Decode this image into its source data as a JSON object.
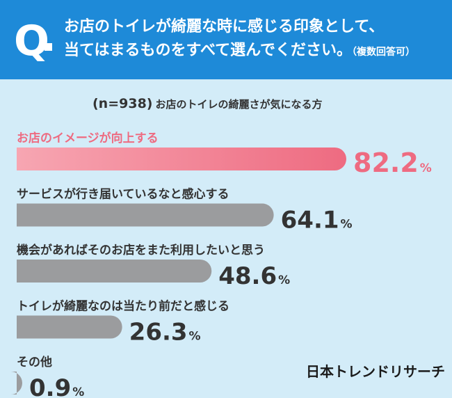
{
  "header": {
    "q_mark": "Q",
    "question_line1": "お店のトイレが綺麗な時に感じる印象として、",
    "question_line2": "当てはまるものをすべて選んでください。",
    "question_note": "（複数回答可）"
  },
  "sample": {
    "n_label": "(n=938)",
    "description": "お店のトイレの綺麗さが気になる方"
  },
  "brand": "日本トレンドリサーチ",
  "chart_data": {
    "type": "bar",
    "orientation": "horizontal",
    "categories": [
      "お店のイメージが向上する",
      "サービスが行き届いているなと感心する",
      "機会があればそのお店をまた利用したいと思う",
      "トイレが綺麗なのは当たり前だと感じる",
      "その他"
    ],
    "values": [
      82.2,
      64.1,
      48.6,
      26.3,
      0.9
    ],
    "unit": "%",
    "value_labels": [
      "82.2",
      "64.1",
      "48.6",
      "26.3",
      "0.9"
    ],
    "highlight_index": 0,
    "colors": {
      "highlight": "#ee6b81",
      "highlight_light": "#f7a6b2",
      "default": "#9b9c9e",
      "label_default": "#333333"
    }
  }
}
